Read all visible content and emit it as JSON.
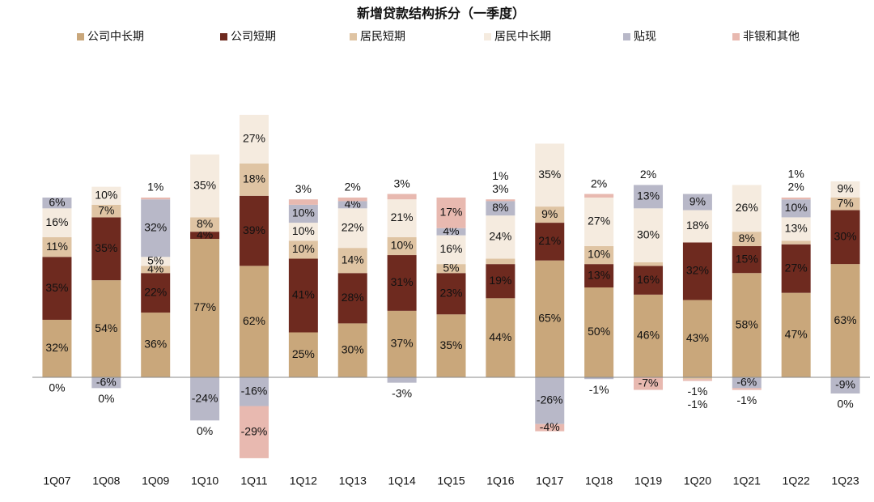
{
  "chart_data": {
    "type": "stacked-bar",
    "title": "新增贷款结构拆分（一季度）",
    "categories": [
      "1Q07",
      "1Q08",
      "1Q09",
      "1Q10",
      "1Q11",
      "1Q12",
      "1Q13",
      "1Q14",
      "1Q15",
      "1Q16",
      "1Q17",
      "1Q18",
      "1Q19",
      "1Q20",
      "1Q21",
      "1Q22",
      "1Q23"
    ],
    "ylim": [
      -50,
      150
    ],
    "series": [
      {
        "name": "公司中长期",
        "color": "#c9a77b",
        "values": [
          32,
          54,
          36,
          77,
          62,
          25,
          30,
          37,
          35,
          44,
          65,
          50,
          46,
          43,
          58,
          47,
          63
        ],
        "value_labels": [
          "32%",
          "54%",
          "36%",
          "77%",
          "62%",
          "25%",
          "30%",
          "37%",
          "35%",
          "44%",
          "65%",
          "50%",
          "46%",
          "43%",
          "58%",
          "47%",
          "63%"
        ]
      },
      {
        "name": "公司短期",
        "color": "#6e2a1f",
        "values": [
          35,
          35,
          22,
          4,
          39,
          41,
          28,
          31,
          23,
          19,
          21,
          13,
          16,
          32,
          15,
          27,
          30
        ],
        "value_labels": [
          "35%",
          "35%",
          "22%",
          "4%",
          "39%",
          "41%",
          "28%",
          "31%",
          "23%",
          "19%",
          "21%",
          "13%",
          "16%",
          "32%",
          "15%",
          "27%",
          "30%"
        ]
      },
      {
        "name": "居民短期",
        "color": "#dfc4a3",
        "values": [
          11,
          7,
          4,
          8,
          18,
          10,
          14,
          10,
          5,
          3,
          9,
          10,
          2,
          -1,
          8,
          2,
          7
        ],
        "value_labels": [
          "11%",
          "7%",
          "4%",
          "8%",
          "18%",
          "10%",
          "14%",
          "10%",
          "5%",
          "3%",
          "9%",
          "10%",
          "2%",
          "-1%",
          "8%",
          "2%",
          "7%"
        ]
      },
      {
        "name": "居民中长期",
        "color": "#f5ebdf",
        "values": [
          16,
          10,
          5,
          35,
          27,
          10,
          22,
          21,
          16,
          24,
          35,
          27,
          30,
          18,
          26,
          13,
          9
        ],
        "value_labels": [
          "16%",
          "10%",
          "5%",
          "35%",
          "27%",
          "10%",
          "22%",
          "21%",
          "16%",
          "24%",
          "35%",
          "27%",
          "30%",
          "18%",
          "26%",
          "13%",
          "9%"
        ]
      },
      {
        "name": "贴现",
        "color": "#b8b8c8",
        "values": [
          6,
          -6,
          32,
          -24,
          -16,
          10,
          4,
          -3,
          4,
          8,
          -26,
          -1,
          13,
          9,
          -6,
          10,
          -9
        ],
        "value_labels": [
          "6%",
          "-6%",
          "32%",
          "-24%",
          "-16%",
          "10%",
          "4%",
          "-3%",
          "4%",
          "8%",
          "-26%",
          "-1%",
          "13%",
          "9%",
          "-6%",
          "10%",
          "-9%"
        ]
      },
      {
        "name": "非银和其他",
        "color": "#e8b9b0",
        "values": [
          0,
          0,
          1,
          0,
          -29,
          3,
          2,
          3,
          17,
          1,
          -4,
          2,
          -7,
          -1,
          -1,
          1,
          0
        ],
        "value_labels": [
          "0%",
          "0%",
          "1%",
          "0%",
          "-29%",
          "3%",
          "2%",
          "3%",
          "17%",
          "1%",
          "-4%",
          "2%",
          "-7%",
          "-1%",
          "-1%",
          "1%",
          "0%"
        ]
      }
    ]
  }
}
